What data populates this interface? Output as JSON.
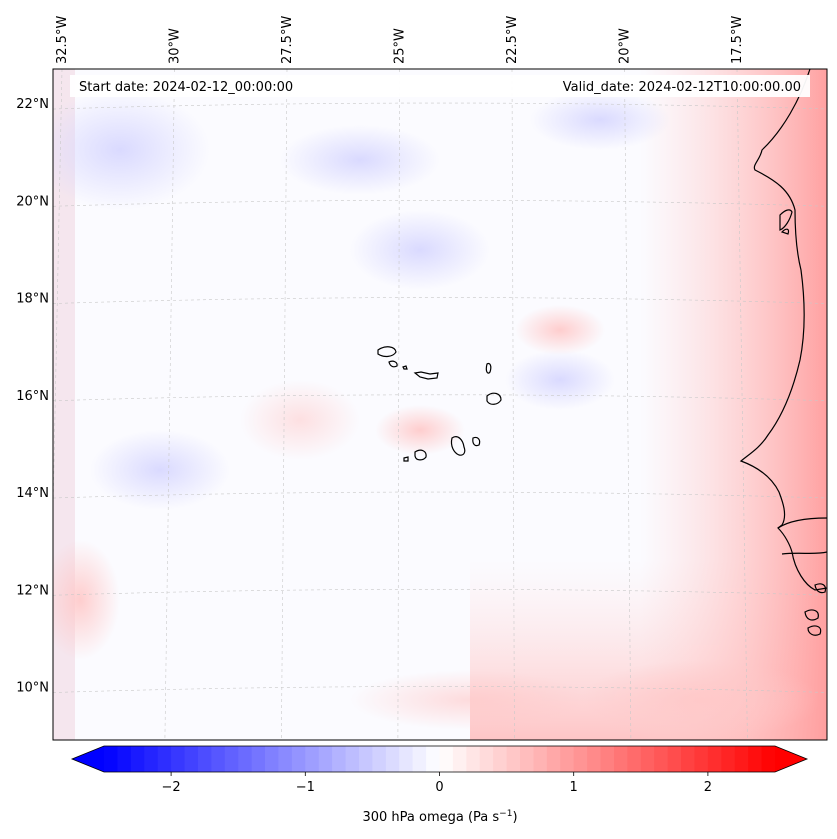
{
  "map": {
    "start_label": "Start date: 2024-02-12_00:00:00",
    "valid_label": "Valid_date: 2024-02-12T10:00:00.00",
    "lon_labels": [
      "32.5°W",
      "30°W",
      "27.5°W",
      "25°W",
      "22.5°W",
      "20°W",
      "17.5°W"
    ],
    "lat_labels": [
      "22°N",
      "20°N",
      "18°N",
      "16°N",
      "14°N",
      "12°N",
      "10°N"
    ],
    "lon_values": [
      -32.5,
      -30,
      -27.5,
      -25,
      -22.5,
      -20,
      -17.5
    ],
    "lat_values": [
      22,
      20,
      18,
      16,
      14,
      12,
      10
    ],
    "extent": {
      "lon_min": -32.7,
      "lon_max": -15.5,
      "lat_min": 8.9,
      "lat_max": 22.7
    },
    "features": [
      "Cape Verde islands",
      "West African coastline"
    ]
  },
  "colorbar": {
    "label_prefix": "300 hPa omega (Pa s",
    "label_exp": "−1",
    "label_suffix": ")",
    "ticks": [
      {
        "value": -2,
        "label": "−2"
      },
      {
        "value": -1,
        "label": "−1"
      },
      {
        "value": 0,
        "label": "0"
      },
      {
        "value": 1,
        "label": "1"
      },
      {
        "value": 2,
        "label": "2"
      }
    ],
    "vmin": -2.5,
    "vmax": 2.5,
    "levels": 50,
    "cmap": "bwr",
    "color_low": "#0000ff",
    "color_mid": "#ffffff",
    "color_high": "#ff0000"
  }
}
